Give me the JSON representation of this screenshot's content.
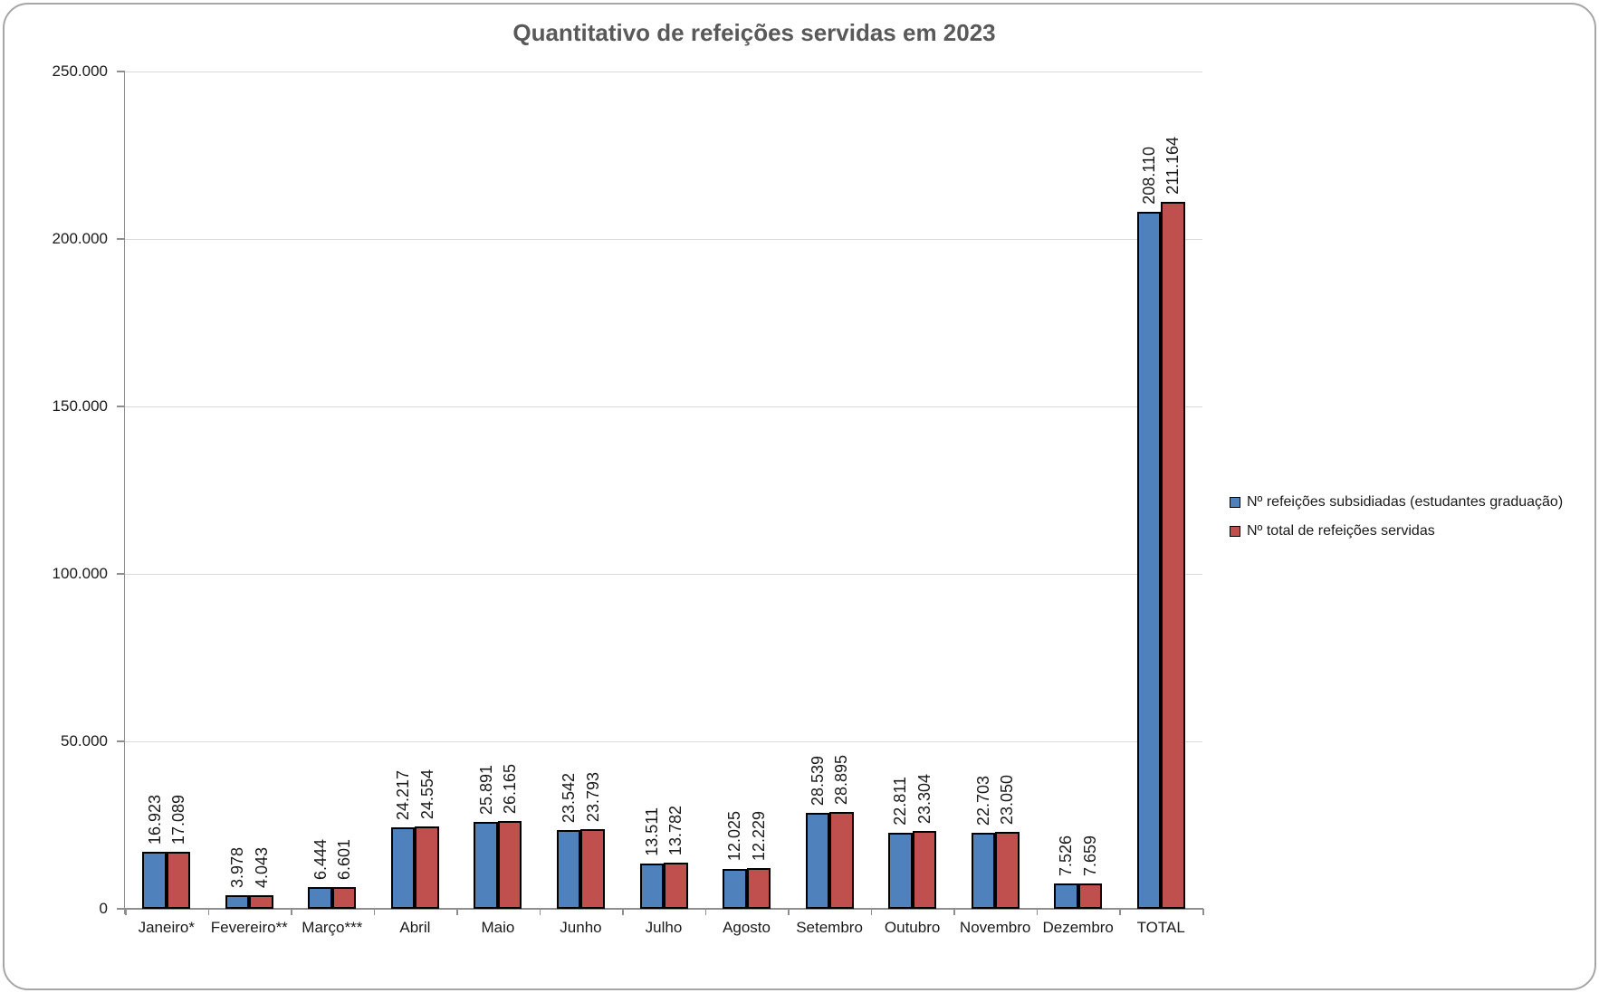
{
  "chart_data": {
    "type": "bar",
    "title": "Quantitativo de refeições servidas em 2023",
    "categories": [
      "Janeiro*",
      "Fevereiro**",
      "Março***",
      "Abril",
      "Maio",
      "Junho",
      "Julho",
      "Agosto",
      "Setembro",
      "Outubro",
      "Novembro",
      "Dezembro",
      "TOTAL"
    ],
    "series": [
      {
        "name": "Nº refeições subsidiadas (estudantes graduação)",
        "color": "#4F81BD",
        "values": [
          16923,
          3978,
          6444,
          24217,
          25891,
          23542,
          13511,
          12025,
          28539,
          22811,
          22703,
          7526,
          208110
        ]
      },
      {
        "name": "Nº total de refeições servidas",
        "color": "#C0504D",
        "values": [
          17089,
          4043,
          6601,
          24554,
          26165,
          23793,
          13782,
          12229,
          28895,
          23304,
          23050,
          7659,
          211164
        ]
      }
    ],
    "y_axis": {
      "min": 0,
      "max": 250000,
      "step": 50000,
      "tick_labels": [
        "0",
        "50.000",
        "100.000",
        "150.000",
        "200.000",
        "250.000"
      ]
    },
    "data_labels": {
      "visible": true,
      "rotation": 270,
      "thousands_separator": "."
    },
    "grid": true,
    "legend_position": "right",
    "bar_border_color": "#000000"
  },
  "style": {
    "title_color": "#595959",
    "gridline_color": "#D9D9D9",
    "axis_line_color": "#8F8F8F",
    "text_color": "#1a1a1a",
    "frame_border_color": "#A6A6A6"
  }
}
